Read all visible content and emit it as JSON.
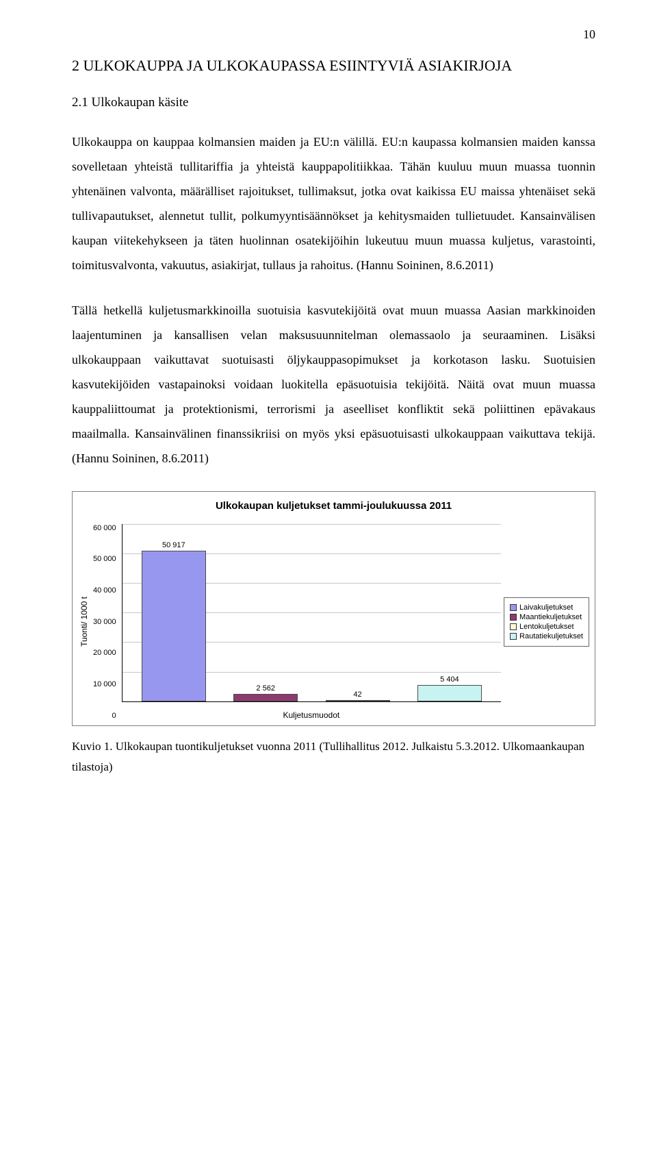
{
  "page_number": "10",
  "heading": "2 ULKOKAUPPA JA ULKOKAUPASSA ESIINTYVIÄ ASIAKIRJOJA",
  "subheading": "2.1 Ulkokaupan käsite",
  "para1": "Ulkokauppa on kauppaa kolmansien maiden ja EU:n välillä. EU:n kaupassa kolmansien maiden kanssa sovelletaan yhteistä tullitariffia ja yhteistä kauppapolitiikkaa. Tähän kuuluu muun muassa tuonnin yhtenäinen valvonta, määrälliset rajoitukset, tullimaksut, jotka ovat kaikissa EU maissa yhtenäiset sekä tullivapautukset, alennetut tullit, polkumyyntisäännökset ja kehitysmaiden tullietuudet. Kansainvälisen kaupan viitekehykseen ja täten huolinnan osatekijöihin lukeutuu muun muassa kuljetus, varastointi, toimitusvalvonta, vakuutus, asiakirjat, tullaus ja rahoitus. (Hannu Soininen, 8.6.2011)",
  "para2": "Tällä hetkellä kuljetusmarkkinoilla suotuisia kasvutekijöitä ovat muun muassa Aasian markkinoiden laajentuminen ja kansallisen velan maksusuunnitelman olemassaolo ja seuraaminen. Lisäksi ulkokauppaan vaikuttavat suotuisasti öljykauppasopimukset ja korkotason lasku. Suotuisien kasvutekijöiden vastapainoksi voidaan luokitella epäsuotuisia tekijöitä. Näitä ovat muun muassa kauppaliittoumat ja protektionismi, terrorismi ja aseelliset konfliktit sekä poliittinen epävakaus maailmalla. Kansainvälinen finanssikriisi on myös yksi epäsuotuisasti ulkokauppaan vaikuttava tekijä. (Hannu Soininen, 8.6.2011)",
  "chart": {
    "type": "bar",
    "title": "Ulkokaupan kuljetukset tammi-joulukuussa 2011",
    "y_label": "Tuonti/ 1000 t",
    "x_label": "Kuljetusmuodot",
    "y_max": 60000,
    "y_ticks": [
      "60 000",
      "50 000",
      "40 000",
      "30 000",
      "20 000",
      "10 000",
      "0"
    ],
    "bars": [
      {
        "value": 50917,
        "label": "50 917",
        "color": "#9797ef"
      },
      {
        "value": 2562,
        "label": "2 562",
        "color": "#8f3a6f"
      },
      {
        "value": 42,
        "label": "42",
        "color": "#fff9d6"
      },
      {
        "value": 5404,
        "label": "5 404",
        "color": "#c7f3f1"
      }
    ],
    "legend": [
      {
        "label": "Laivakuljetukset",
        "color": "#9797ef"
      },
      {
        "label": "Maantiekuljetukset",
        "color": "#8f3a6f"
      },
      {
        "label": "Lentokuljetukset",
        "color": "#fff9d6"
      },
      {
        "label": "Rautatiekuljetukset",
        "color": "#c7f3f1"
      }
    ],
    "grid_color": "#c7c7c7",
    "background": "#ffffff"
  },
  "caption": "Kuvio 1. Ulkokaupan tuontikuljetukset vuonna 2011 (Tullihallitus 2012. Julkaistu 5.3.2012. Ulkomaankaupan tilastoja)"
}
